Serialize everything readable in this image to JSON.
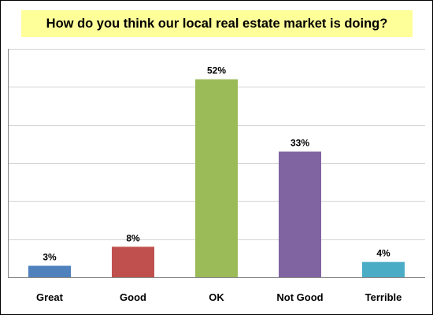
{
  "chart_data": {
    "type": "bar",
    "title": "How do you think our local real estate market is doing?",
    "xlabel": "",
    "ylabel": "",
    "categories": [
      "Great",
      "Good",
      "OK",
      "Not Good",
      "Terrible"
    ],
    "values": [
      3,
      8,
      52,
      33,
      4
    ],
    "value_labels": [
      "3%",
      "8%",
      "52%",
      "33%",
      "4%"
    ],
    "colors": [
      "#4f81bd",
      "#c0504d",
      "#9bbb59",
      "#8064a2",
      "#4bacc6"
    ],
    "ylim": [
      0,
      60
    ],
    "y_gridlines": [
      0,
      10,
      20,
      30,
      40,
      50,
      60
    ],
    "grid": true,
    "legend": "none"
  }
}
